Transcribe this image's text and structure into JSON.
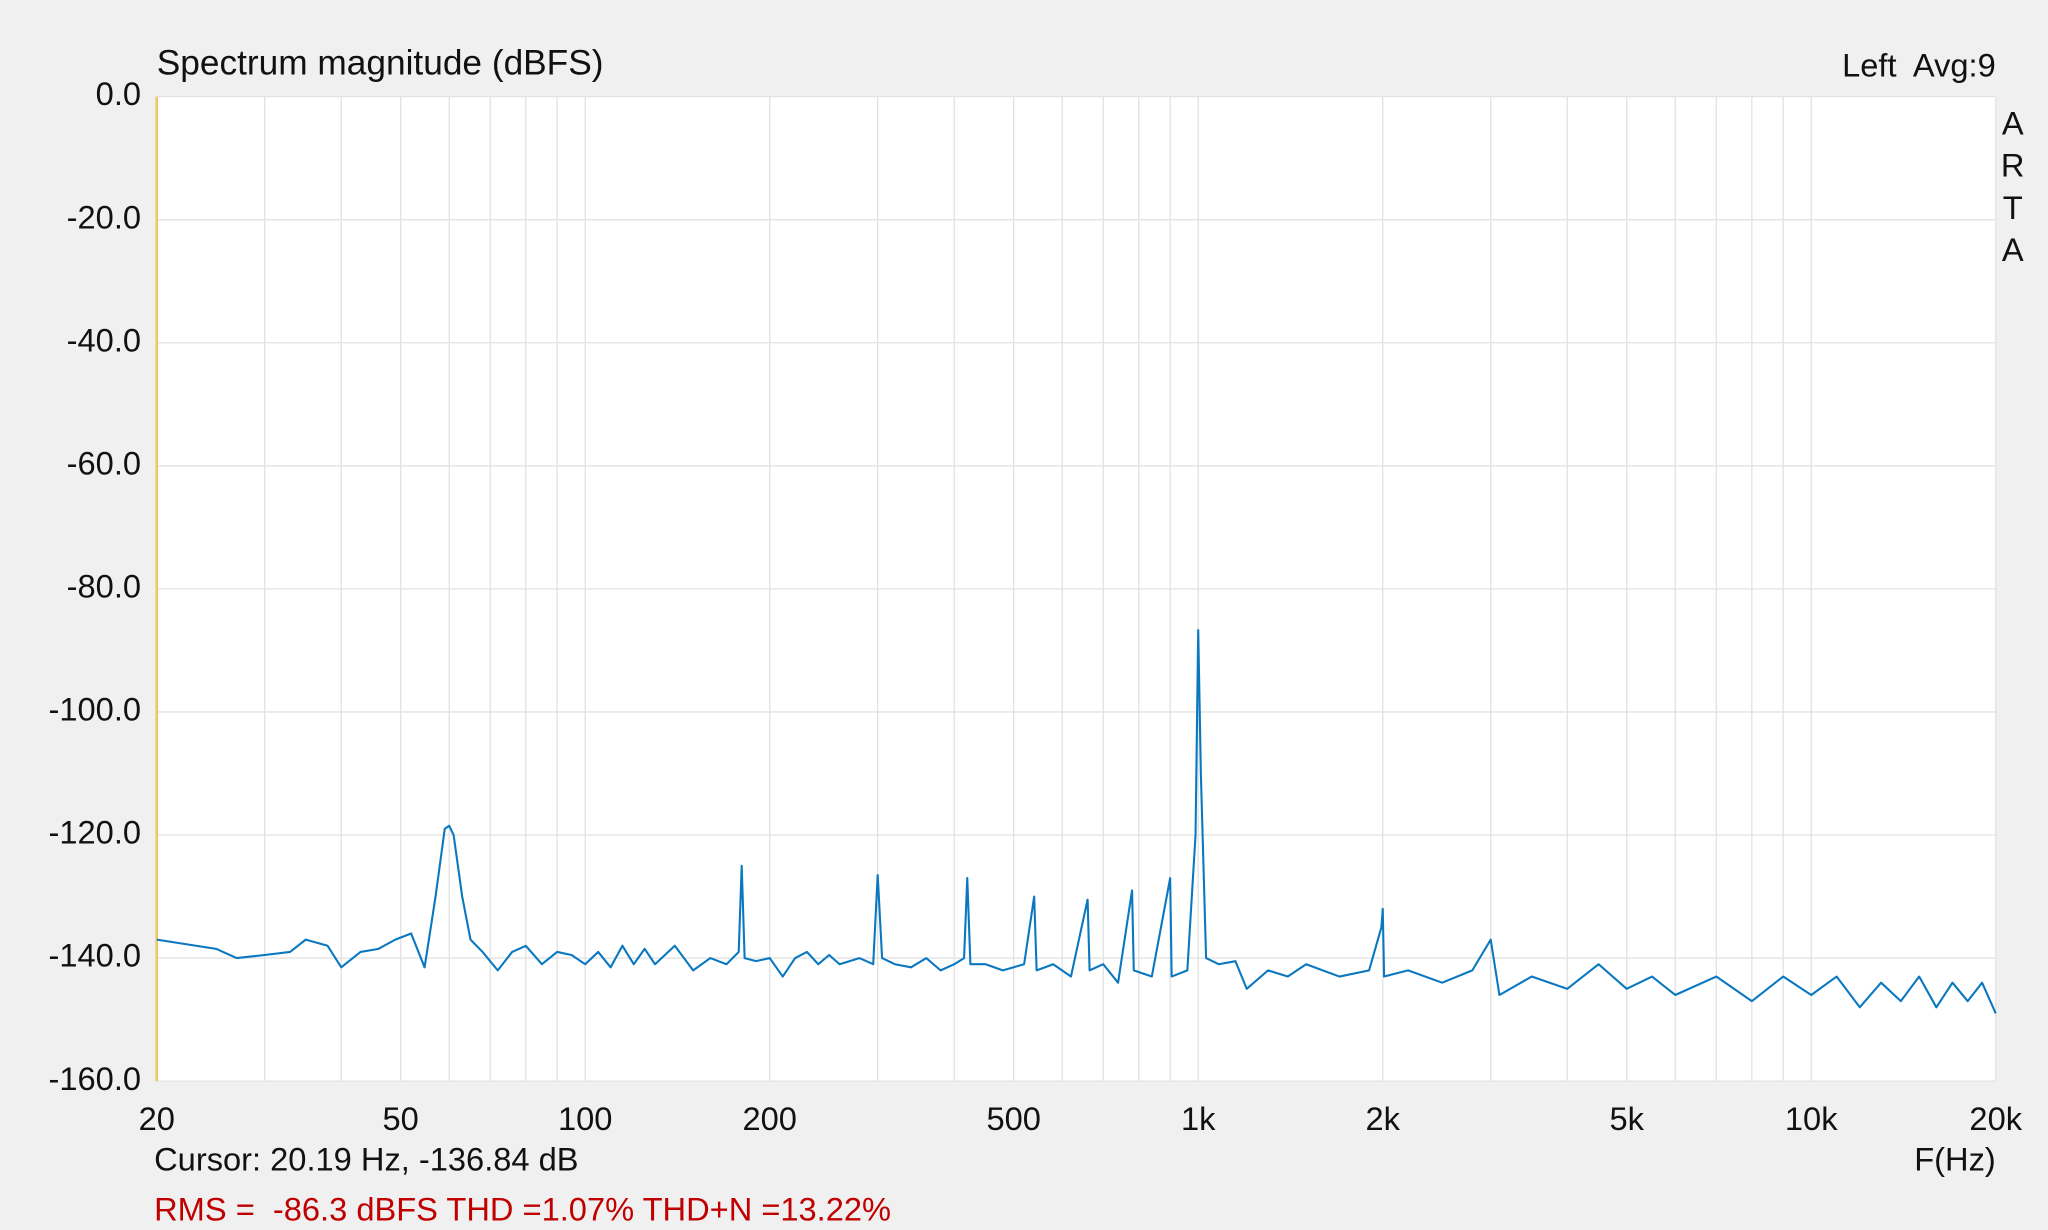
{
  "chart_data": {
    "type": "line",
    "title": "Spectrum magnitude (dBFS)",
    "channel_label": "Left  Avg:9",
    "side_label": "ARTA",
    "cursor_text": "Cursor: 20.19 Hz, -136.84 dB",
    "x_label": "F(Hz)",
    "summary": "RMS =  -86.3 dBFS THD =1.07% THD+N =13.22%",
    "x_scale": "log",
    "xlim": [
      20,
      20000
    ],
    "ylim": [
      -160,
      0
    ],
    "xticks": [
      20,
      50,
      100,
      200,
      500,
      {
        "value": 1000,
        "label": "1k"
      },
      {
        "value": 2000,
        "label": "2k"
      },
      {
        "value": 5000,
        "label": "5k"
      },
      {
        "value": 10000,
        "label": "10k"
      },
      {
        "value": 20000,
        "label": "20k"
      }
    ],
    "x_minor_ticks": [
      30,
      40,
      60,
      70,
      80,
      90,
      300,
      400,
      600,
      700,
      800,
      900,
      3000,
      4000,
      6000,
      7000,
      8000,
      9000
    ],
    "yticks": [
      {
        "value": 0,
        "label": "0.0"
      },
      {
        "value": -20,
        "label": "-20.0"
      },
      {
        "value": -40,
        "label": "-40.0"
      },
      {
        "value": -60,
        "label": "-60.0"
      },
      {
        "value": -80,
        "label": "-80.0"
      },
      {
        "value": -100,
        "label": "-100.0"
      },
      {
        "value": -120,
        "label": "-120.0"
      },
      {
        "value": -140,
        "label": "-140.0"
      },
      {
        "value": -160,
        "label": "-160.0"
      }
    ],
    "grid": true,
    "color": "#0a78c0",
    "x": [
      20,
      25,
      27,
      30,
      33,
      35,
      38,
      40,
      43,
      46,
      49,
      52,
      54.7,
      57,
      59,
      60,
      61,
      63,
      65,
      68,
      72,
      76,
      80,
      85,
      90,
      95,
      100,
      105,
      110,
      115,
      120,
      125,
      130,
      140,
      150,
      160,
      170,
      178,
      180,
      182,
      190,
      200,
      210,
      220,
      230,
      240,
      250,
      260,
      280,
      295,
      300,
      305,
      320,
      340,
      360,
      380,
      400,
      415,
      420,
      425,
      450,
      480,
      520,
      540,
      545,
      580,
      620,
      660,
      665,
      700,
      740,
      780,
      785,
      840,
      900,
      905,
      960,
      990,
      1000,
      1010,
      1030,
      1080,
      1150,
      1200,
      1300,
      1400,
      1500,
      1700,
      1900,
      1990,
      2000,
      2010,
      2200,
      2500,
      2800,
      3000,
      3100,
      3500,
      4000,
      4500,
      5000,
      5500,
      6000,
      7000,
      8000,
      9000,
      10000,
      11000,
      12000,
      13000,
      14000,
      15000,
      16000,
      17000,
      18000,
      19000,
      20000
    ],
    "values": [
      -137,
      -138.5,
      -140,
      -139.5,
      -139,
      -137,
      -138,
      -141.5,
      -139,
      -138.5,
      -137,
      -136,
      -141.5,
      -130,
      -119,
      -118.5,
      -120,
      -130,
      -137,
      -139,
      -142,
      -139,
      -138,
      -141,
      -139,
      -139.5,
      -141,
      -139,
      -141.5,
      -138,
      -141,
      -138.5,
      -141,
      -138,
      -142,
      -140,
      -141,
      -139,
      -125,
      -140,
      -140.5,
      -140,
      -143,
      -140,
      -139,
      -141,
      -139.5,
      -141,
      -140,
      -141,
      -126.5,
      -140,
      -141,
      -141.5,
      -140,
      -142,
      -141,
      -140,
      -127,
      -141,
      -141,
      -142,
      -141,
      -130,
      -142,
      -141,
      -143,
      -130.5,
      -142,
      -141,
      -144,
      -129,
      -142,
      -143,
      -127,
      -143,
      -142,
      -120,
      -86.7,
      -110,
      -140,
      -141,
      -140.5,
      -145,
      -142,
      -143,
      -141,
      -143,
      -142,
      -135,
      -132,
      -143,
      -142,
      -144,
      -142,
      -137,
      -146,
      -143,
      -145,
      -141,
      -145,
      -143,
      -146,
      -143,
      -147,
      -143,
      -146,
      -143,
      -148,
      -144,
      -147,
      -143,
      -148,
      -144,
      -147,
      -144,
      -149
    ]
  }
}
